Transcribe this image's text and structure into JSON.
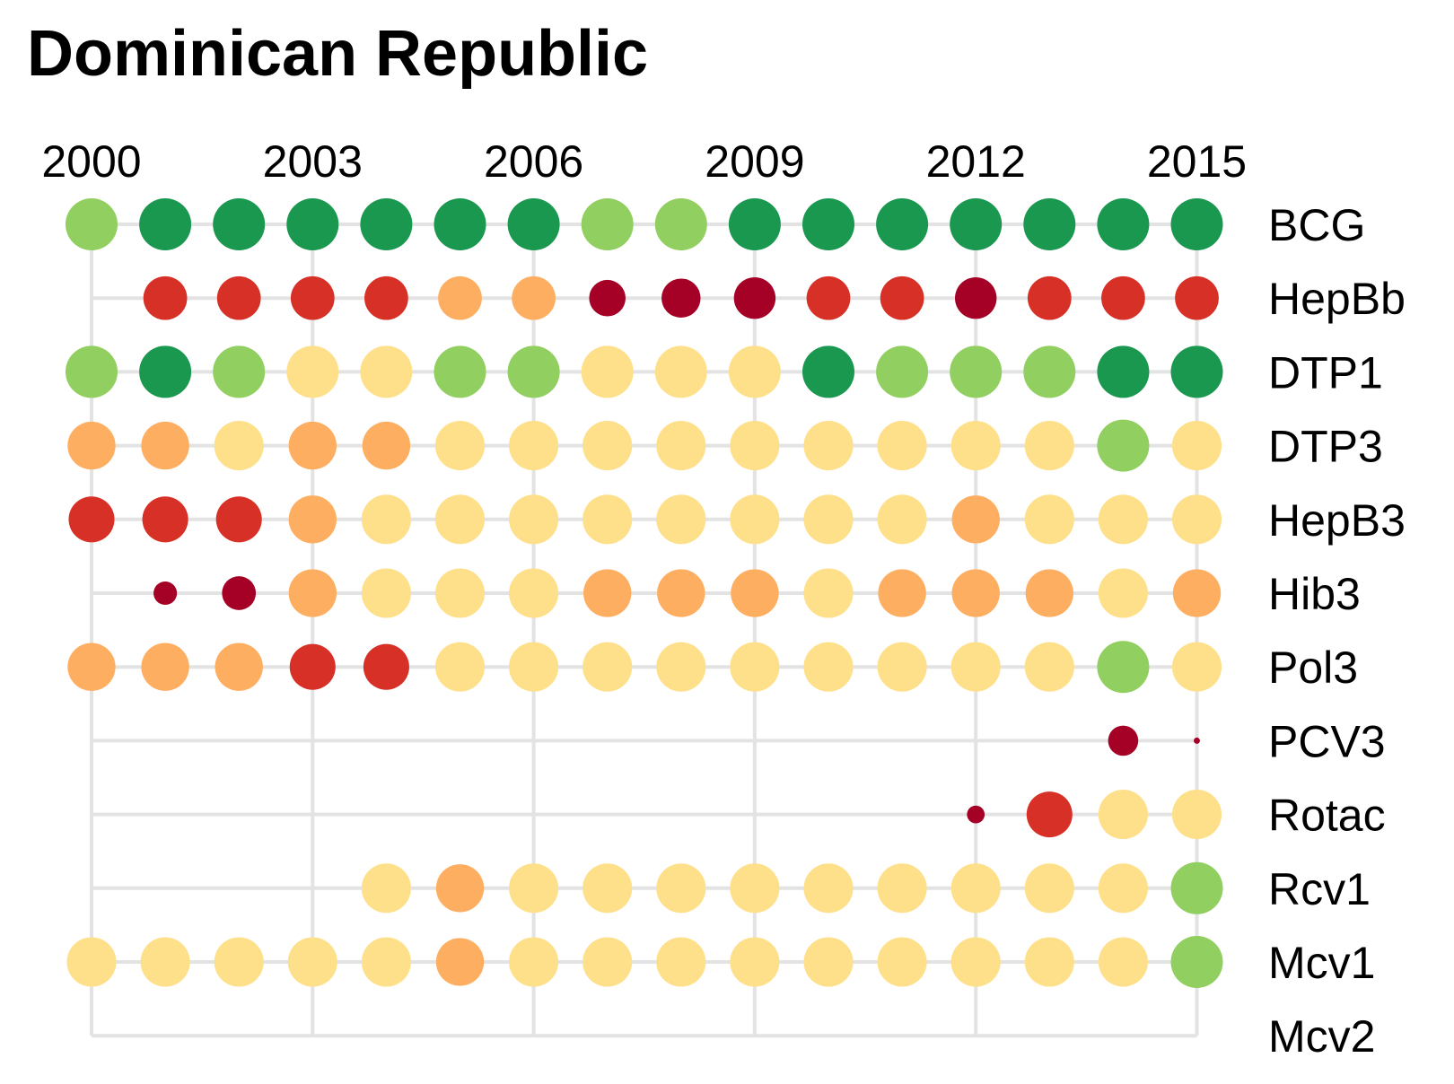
{
  "chart_data": {
    "type": "dot-matrix",
    "title": "Dominican Republic",
    "x": [
      2000,
      2001,
      2002,
      2003,
      2004,
      2005,
      2006,
      2007,
      2008,
      2009,
      2010,
      2011,
      2012,
      2013,
      2014,
      2015
    ],
    "x_tick_labels": [
      "2000",
      "2003",
      "2006",
      "2009",
      "2012",
      "2015"
    ],
    "categories": [
      "BCG",
      "HepBb",
      "DTP1",
      "DTP3",
      "HepB3",
      "Hib3",
      "Pol3",
      "PCV3",
      "Rotac",
      "Rcv1",
      "Mcv1",
      "Mcv2"
    ],
    "palette": {
      "dark_green": "#1a9850",
      "light_green": "#91cf60",
      "pale_yellow": "#fee08b",
      "orange": "#fdae61",
      "red": "#d73027",
      "dark_red": "#a50026"
    },
    "series": [
      {
        "name": "BCG",
        "points": [
          {
            "x": 2000,
            "color": "light_green",
            "size": 1
          },
          {
            "x": 2001,
            "color": "dark_green",
            "size": 1
          },
          {
            "x": 2002,
            "color": "dark_green",
            "size": 1
          },
          {
            "x": 2003,
            "color": "dark_green",
            "size": 1
          },
          {
            "x": 2004,
            "color": "dark_green",
            "size": 1
          },
          {
            "x": 2005,
            "color": "dark_green",
            "size": 1
          },
          {
            "x": 2006,
            "color": "dark_green",
            "size": 1
          },
          {
            "x": 2007,
            "color": "light_green",
            "size": 1
          },
          {
            "x": 2008,
            "color": "light_green",
            "size": 1
          },
          {
            "x": 2009,
            "color": "dark_green",
            "size": 1
          },
          {
            "x": 2010,
            "color": "dark_green",
            "size": 1
          },
          {
            "x": 2011,
            "color": "dark_green",
            "size": 1
          },
          {
            "x": 2012,
            "color": "dark_green",
            "size": 1
          },
          {
            "x": 2013,
            "color": "dark_green",
            "size": 1
          },
          {
            "x": 2014,
            "color": "dark_green",
            "size": 1
          },
          {
            "x": 2015,
            "color": "dark_green",
            "size": 1
          }
        ]
      },
      {
        "name": "HepBb",
        "points": [
          {
            "x": 2001,
            "color": "red",
            "size": 0.84
          },
          {
            "x": 2002,
            "color": "red",
            "size": 0.84
          },
          {
            "x": 2003,
            "color": "red",
            "size": 0.84
          },
          {
            "x": 2004,
            "color": "red",
            "size": 0.84
          },
          {
            "x": 2005,
            "color": "orange",
            "size": 0.84
          },
          {
            "x": 2006,
            "color": "orange",
            "size": 0.84
          },
          {
            "x": 2007,
            "color": "dark_red",
            "size": 0.7
          },
          {
            "x": 2008,
            "color": "dark_red",
            "size": 0.75
          },
          {
            "x": 2009,
            "color": "dark_red",
            "size": 0.8
          },
          {
            "x": 2010,
            "color": "red",
            "size": 0.84
          },
          {
            "x": 2011,
            "color": "red",
            "size": 0.84
          },
          {
            "x": 2012,
            "color": "dark_red",
            "size": 0.8
          },
          {
            "x": 2013,
            "color": "red",
            "size": 0.84
          },
          {
            "x": 2014,
            "color": "red",
            "size": 0.84
          },
          {
            "x": 2015,
            "color": "red",
            "size": 0.84
          }
        ]
      },
      {
        "name": "DTP1",
        "points": [
          {
            "x": 2000,
            "color": "light_green",
            "size": 1
          },
          {
            "x": 2001,
            "color": "dark_green",
            "size": 1
          },
          {
            "x": 2002,
            "color": "light_green",
            "size": 1
          },
          {
            "x": 2003,
            "color": "pale_yellow",
            "size": 1
          },
          {
            "x": 2004,
            "color": "pale_yellow",
            "size": 1
          },
          {
            "x": 2005,
            "color": "light_green",
            "size": 1
          },
          {
            "x": 2006,
            "color": "light_green",
            "size": 1
          },
          {
            "x": 2007,
            "color": "pale_yellow",
            "size": 1
          },
          {
            "x": 2008,
            "color": "pale_yellow",
            "size": 1
          },
          {
            "x": 2009,
            "color": "pale_yellow",
            "size": 1
          },
          {
            "x": 2010,
            "color": "dark_green",
            "size": 1
          },
          {
            "x": 2011,
            "color": "light_green",
            "size": 1
          },
          {
            "x": 2012,
            "color": "light_green",
            "size": 1
          },
          {
            "x": 2013,
            "color": "light_green",
            "size": 1
          },
          {
            "x": 2014,
            "color": "dark_green",
            "size": 1
          },
          {
            "x": 2015,
            "color": "dark_green",
            "size": 1
          }
        ]
      },
      {
        "name": "DTP3",
        "points": [
          {
            "x": 2000,
            "color": "orange",
            "size": 0.92
          },
          {
            "x": 2001,
            "color": "orange",
            "size": 0.92
          },
          {
            "x": 2002,
            "color": "pale_yellow",
            "size": 0.95
          },
          {
            "x": 2003,
            "color": "orange",
            "size": 0.92
          },
          {
            "x": 2004,
            "color": "orange",
            "size": 0.92
          },
          {
            "x": 2005,
            "color": "pale_yellow",
            "size": 0.95
          },
          {
            "x": 2006,
            "color": "pale_yellow",
            "size": 0.95
          },
          {
            "x": 2007,
            "color": "pale_yellow",
            "size": 0.95
          },
          {
            "x": 2008,
            "color": "pale_yellow",
            "size": 0.95
          },
          {
            "x": 2009,
            "color": "pale_yellow",
            "size": 0.95
          },
          {
            "x": 2010,
            "color": "pale_yellow",
            "size": 0.95
          },
          {
            "x": 2011,
            "color": "pale_yellow",
            "size": 0.95
          },
          {
            "x": 2012,
            "color": "pale_yellow",
            "size": 0.95
          },
          {
            "x": 2013,
            "color": "pale_yellow",
            "size": 0.95
          },
          {
            "x": 2014,
            "color": "light_green",
            "size": 1
          },
          {
            "x": 2015,
            "color": "pale_yellow",
            "size": 0.95
          }
        ]
      },
      {
        "name": "HepB3",
        "points": [
          {
            "x": 2000,
            "color": "red",
            "size": 0.88
          },
          {
            "x": 2001,
            "color": "red",
            "size": 0.88
          },
          {
            "x": 2002,
            "color": "red",
            "size": 0.88
          },
          {
            "x": 2003,
            "color": "orange",
            "size": 0.92
          },
          {
            "x": 2004,
            "color": "pale_yellow",
            "size": 0.95
          },
          {
            "x": 2005,
            "color": "pale_yellow",
            "size": 0.95
          },
          {
            "x": 2006,
            "color": "pale_yellow",
            "size": 0.95
          },
          {
            "x": 2007,
            "color": "pale_yellow",
            "size": 0.95
          },
          {
            "x": 2008,
            "color": "pale_yellow",
            "size": 0.95
          },
          {
            "x": 2009,
            "color": "pale_yellow",
            "size": 0.95
          },
          {
            "x": 2010,
            "color": "pale_yellow",
            "size": 0.95
          },
          {
            "x": 2011,
            "color": "pale_yellow",
            "size": 0.95
          },
          {
            "x": 2012,
            "color": "orange",
            "size": 0.92
          },
          {
            "x": 2013,
            "color": "pale_yellow",
            "size": 0.95
          },
          {
            "x": 2014,
            "color": "pale_yellow",
            "size": 0.95
          },
          {
            "x": 2015,
            "color": "pale_yellow",
            "size": 0.95
          }
        ]
      },
      {
        "name": "Hib3",
        "points": [
          {
            "x": 2001,
            "color": "dark_red",
            "size": 0.45
          },
          {
            "x": 2002,
            "color": "dark_red",
            "size": 0.65
          },
          {
            "x": 2003,
            "color": "orange",
            "size": 0.92
          },
          {
            "x": 2004,
            "color": "pale_yellow",
            "size": 0.95
          },
          {
            "x": 2005,
            "color": "pale_yellow",
            "size": 0.95
          },
          {
            "x": 2006,
            "color": "pale_yellow",
            "size": 0.95
          },
          {
            "x": 2007,
            "color": "orange",
            "size": 0.92
          },
          {
            "x": 2008,
            "color": "orange",
            "size": 0.92
          },
          {
            "x": 2009,
            "color": "orange",
            "size": 0.92
          },
          {
            "x": 2010,
            "color": "pale_yellow",
            "size": 0.95
          },
          {
            "x": 2011,
            "color": "orange",
            "size": 0.92
          },
          {
            "x": 2012,
            "color": "orange",
            "size": 0.92
          },
          {
            "x": 2013,
            "color": "orange",
            "size": 0.92
          },
          {
            "x": 2014,
            "color": "pale_yellow",
            "size": 0.95
          },
          {
            "x": 2015,
            "color": "orange",
            "size": 0.92
          }
        ]
      },
      {
        "name": "Pol3",
        "points": [
          {
            "x": 2000,
            "color": "orange",
            "size": 0.92
          },
          {
            "x": 2001,
            "color": "orange",
            "size": 0.92
          },
          {
            "x": 2002,
            "color": "orange",
            "size": 0.92
          },
          {
            "x": 2003,
            "color": "red",
            "size": 0.88
          },
          {
            "x": 2004,
            "color": "red",
            "size": 0.88
          },
          {
            "x": 2005,
            "color": "pale_yellow",
            "size": 0.95
          },
          {
            "x": 2006,
            "color": "pale_yellow",
            "size": 0.95
          },
          {
            "x": 2007,
            "color": "pale_yellow",
            "size": 0.95
          },
          {
            "x": 2008,
            "color": "pale_yellow",
            "size": 0.95
          },
          {
            "x": 2009,
            "color": "pale_yellow",
            "size": 0.95
          },
          {
            "x": 2010,
            "color": "pale_yellow",
            "size": 0.95
          },
          {
            "x": 2011,
            "color": "pale_yellow",
            "size": 0.95
          },
          {
            "x": 2012,
            "color": "pale_yellow",
            "size": 0.95
          },
          {
            "x": 2013,
            "color": "pale_yellow",
            "size": 0.95
          },
          {
            "x": 2014,
            "color": "light_green",
            "size": 1
          },
          {
            "x": 2015,
            "color": "pale_yellow",
            "size": 0.95
          }
        ]
      },
      {
        "name": "PCV3",
        "points": [
          {
            "x": 2014,
            "color": "dark_red",
            "size": 0.58
          },
          {
            "x": 2015,
            "color": "dark_red",
            "size": 0.12
          }
        ]
      },
      {
        "name": "Rotac",
        "points": [
          {
            "x": 2012,
            "color": "dark_red",
            "size": 0.34
          },
          {
            "x": 2013,
            "color": "red",
            "size": 0.88
          },
          {
            "x": 2014,
            "color": "pale_yellow",
            "size": 0.95
          },
          {
            "x": 2015,
            "color": "pale_yellow",
            "size": 0.95
          }
        ]
      },
      {
        "name": "Rcv1",
        "points": [
          {
            "x": 2004,
            "color": "pale_yellow",
            "size": 0.95
          },
          {
            "x": 2005,
            "color": "orange",
            "size": 0.92
          },
          {
            "x": 2006,
            "color": "pale_yellow",
            "size": 0.95
          },
          {
            "x": 2007,
            "color": "pale_yellow",
            "size": 0.95
          },
          {
            "x": 2008,
            "color": "pale_yellow",
            "size": 0.95
          },
          {
            "x": 2009,
            "color": "pale_yellow",
            "size": 0.95
          },
          {
            "x": 2010,
            "color": "pale_yellow",
            "size": 0.95
          },
          {
            "x": 2011,
            "color": "pale_yellow",
            "size": 0.95
          },
          {
            "x": 2012,
            "color": "pale_yellow",
            "size": 0.95
          },
          {
            "x": 2013,
            "color": "pale_yellow",
            "size": 0.95
          },
          {
            "x": 2014,
            "color": "pale_yellow",
            "size": 0.95
          },
          {
            "x": 2015,
            "color": "light_green",
            "size": 1
          }
        ]
      },
      {
        "name": "Mcv1",
        "points": [
          {
            "x": 2000,
            "color": "pale_yellow",
            "size": 0.95
          },
          {
            "x": 2001,
            "color": "pale_yellow",
            "size": 0.95
          },
          {
            "x": 2002,
            "color": "pale_yellow",
            "size": 0.95
          },
          {
            "x": 2003,
            "color": "pale_yellow",
            "size": 0.95
          },
          {
            "x": 2004,
            "color": "pale_yellow",
            "size": 0.95
          },
          {
            "x": 2005,
            "color": "orange",
            "size": 0.92
          },
          {
            "x": 2006,
            "color": "pale_yellow",
            "size": 0.95
          },
          {
            "x": 2007,
            "color": "pale_yellow",
            "size": 0.95
          },
          {
            "x": 2008,
            "color": "pale_yellow",
            "size": 0.95
          },
          {
            "x": 2009,
            "color": "pale_yellow",
            "size": 0.95
          },
          {
            "x": 2010,
            "color": "pale_yellow",
            "size": 0.95
          },
          {
            "x": 2011,
            "color": "pale_yellow",
            "size": 0.95
          },
          {
            "x": 2012,
            "color": "pale_yellow",
            "size": 0.95
          },
          {
            "x": 2013,
            "color": "pale_yellow",
            "size": 0.95
          },
          {
            "x": 2014,
            "color": "pale_yellow",
            "size": 0.95
          },
          {
            "x": 2015,
            "color": "light_green",
            "size": 1
          }
        ]
      },
      {
        "name": "Mcv2",
        "points": []
      }
    ]
  }
}
